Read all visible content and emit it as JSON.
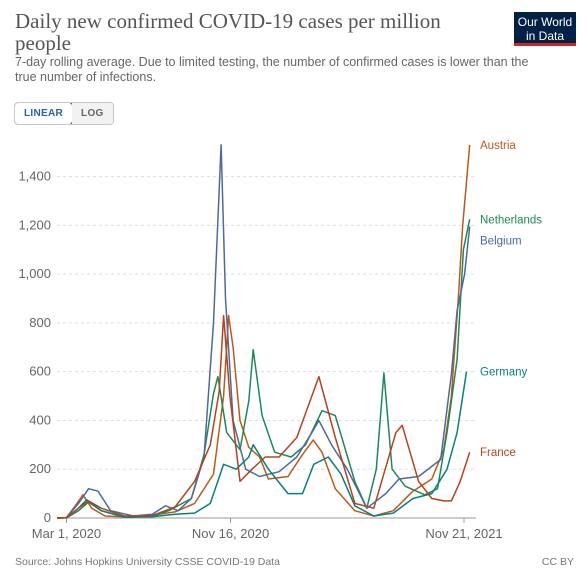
{
  "header": {
    "title": "Daily new confirmed COVID-19 cases per million people",
    "subtitle": "7-day rolling average. Due to limited testing, the number of confirmed cases is lower than the true number of infections.",
    "logo_line1": "Our World",
    "logo_line2": "in Data"
  },
  "controls": {
    "linear_label": "LINEAR",
    "log_label": "LOG"
  },
  "footer": {
    "source": "Source: Johns Hopkins University CSSE COVID-19 Data",
    "license": "CC BY"
  },
  "chart_data": {
    "type": "line",
    "x_unit": "date",
    "xlim": [
      "2020-02-15",
      "2021-12-10"
    ],
    "ylim": [
      0,
      1550
    ],
    "yticks": [
      0,
      200,
      400,
      600,
      800,
      1000,
      1200,
      1400
    ],
    "ytick_labels": [
      "0",
      "200",
      "400",
      "600",
      "800",
      "1,000",
      "1,200",
      "1,400"
    ],
    "xticks": [
      "2020-03-01",
      "2020-11-16",
      "2021-11-21"
    ],
    "xtick_labels": [
      "Mar 1, 2020",
      "Nov 16, 2020",
      "Nov 21, 2021"
    ],
    "grid": "horizontal-dashed",
    "legend": "right-end-labels",
    "series": [
      {
        "name": "Austria",
        "color": "#c05917",
        "points": [
          [
            "2020-02-15",
            0
          ],
          [
            "2020-03-01",
            2
          ],
          [
            "2020-03-15",
            50
          ],
          [
            "2020-03-27",
            95
          ],
          [
            "2020-04-10",
            40
          ],
          [
            "2020-05-01",
            8
          ],
          [
            "2020-06-15",
            3
          ],
          [
            "2020-07-15",
            12
          ],
          [
            "2020-08-20",
            25
          ],
          [
            "2020-09-20",
            60
          ],
          [
            "2020-10-20",
            180
          ],
          [
            "2020-11-05",
            500
          ],
          [
            "2020-11-13",
            830
          ],
          [
            "2020-11-20",
            700
          ],
          [
            "2020-12-01",
            400
          ],
          [
            "2020-12-15",
            290
          ],
          [
            "2021-01-01",
            250
          ],
          [
            "2021-01-15",
            160
          ],
          [
            "2021-02-15",
            170
          ],
          [
            "2021-03-10",
            260
          ],
          [
            "2021-03-27",
            320
          ],
          [
            "2021-04-10",
            270
          ],
          [
            "2021-05-01",
            120
          ],
          [
            "2021-06-01",
            30
          ],
          [
            "2021-07-01",
            8
          ],
          [
            "2021-08-01",
            30
          ],
          [
            "2021-09-01",
            110
          ],
          [
            "2021-10-01",
            160
          ],
          [
            "2021-10-20",
            280
          ],
          [
            "2021-11-01",
            500
          ],
          [
            "2021-11-12",
            900
          ],
          [
            "2021-11-19",
            1200
          ],
          [
            "2021-11-30",
            1530
          ]
        ]
      },
      {
        "name": "Netherlands",
        "color": "#1b8a5a",
        "points": [
          [
            "2020-02-15",
            0
          ],
          [
            "2020-03-01",
            1
          ],
          [
            "2020-03-20",
            30
          ],
          [
            "2020-04-05",
            65
          ],
          [
            "2020-04-25",
            30
          ],
          [
            "2020-06-01",
            3
          ],
          [
            "2020-07-15",
            6
          ],
          [
            "2020-08-10",
            30
          ],
          [
            "2020-09-15",
            80
          ],
          [
            "2020-10-05",
            260
          ],
          [
            "2020-10-20",
            510
          ],
          [
            "2020-10-27",
            580
          ],
          [
            "2020-11-10",
            350
          ],
          [
            "2020-12-01",
            280
          ],
          [
            "2020-12-15",
            480
          ],
          [
            "2020-12-22",
            690
          ],
          [
            "2021-01-05",
            420
          ],
          [
            "2021-01-25",
            270
          ],
          [
            "2021-02-20",
            250
          ],
          [
            "2021-03-15",
            300
          ],
          [
            "2021-04-10",
            440
          ],
          [
            "2021-05-01",
            420
          ],
          [
            "2021-06-01",
            150
          ],
          [
            "2021-06-20",
            40
          ],
          [
            "2021-07-05",
            200
          ],
          [
            "2021-07-17",
            595
          ],
          [
            "2021-07-30",
            200
          ],
          [
            "2021-08-20",
            130
          ],
          [
            "2021-09-20",
            95
          ],
          [
            "2021-10-10",
            120
          ],
          [
            "2021-10-25",
            350
          ],
          [
            "2021-11-10",
            650
          ],
          [
            "2021-11-20",
            1100
          ],
          [
            "2021-11-30",
            1225
          ]
        ]
      },
      {
        "name": "Belgium",
        "color": "#4c6a9c",
        "points": [
          [
            "2020-02-15",
            0
          ],
          [
            "2020-03-01",
            1
          ],
          [
            "2020-03-20",
            60
          ],
          [
            "2020-04-05",
            120
          ],
          [
            "2020-04-20",
            110
          ],
          [
            "2020-05-10",
            30
          ],
          [
            "2020-06-15",
            8
          ],
          [
            "2020-07-15",
            15
          ],
          [
            "2020-08-05",
            50
          ],
          [
            "2020-08-25",
            30
          ],
          [
            "2020-09-15",
            80
          ],
          [
            "2020-10-05",
            250
          ],
          [
            "2020-10-20",
            800
          ],
          [
            "2020-11-01",
            1530
          ],
          [
            "2020-11-08",
            900
          ],
          [
            "2020-11-20",
            400
          ],
          [
            "2020-12-10",
            200
          ],
          [
            "2021-01-01",
            170
          ],
          [
            "2021-02-01",
            190
          ],
          [
            "2021-03-01",
            250
          ],
          [
            "2021-03-25",
            350
          ],
          [
            "2021-04-05",
            400
          ],
          [
            "2021-04-25",
            300
          ],
          [
            "2021-05-20",
            200
          ],
          [
            "2021-06-20",
            40
          ],
          [
            "2021-07-20",
            100
          ],
          [
            "2021-08-10",
            160
          ],
          [
            "2021-09-10",
            170
          ],
          [
            "2021-10-15",
            240
          ],
          [
            "2021-11-01",
            590
          ],
          [
            "2021-11-10",
            850
          ],
          [
            "2021-11-22",
            1000
          ],
          [
            "2021-11-30",
            1195
          ]
        ]
      },
      {
        "name": "Germany",
        "color": "#00847e",
        "points": [
          [
            "2020-02-15",
            0
          ],
          [
            "2020-03-01",
            1
          ],
          [
            "2020-03-20",
            40
          ],
          [
            "2020-04-02",
            75
          ],
          [
            "2020-04-25",
            30
          ],
          [
            "2020-06-01",
            5
          ],
          [
            "2020-07-15",
            5
          ],
          [
            "2020-08-20",
            15
          ],
          [
            "2020-09-20",
            20
          ],
          [
            "2020-10-15",
            60
          ],
          [
            "2020-11-05",
            220
          ],
          [
            "2020-11-25",
            200
          ],
          [
            "2020-12-15",
            250
          ],
          [
            "2020-12-22",
            300
          ],
          [
            "2021-01-15",
            200
          ],
          [
            "2021-02-15",
            100
          ],
          [
            "2021-03-10",
            100
          ],
          [
            "2021-03-28",
            220
          ],
          [
            "2021-04-20",
            250
          ],
          [
            "2021-05-10",
            180
          ],
          [
            "2021-06-01",
            50
          ],
          [
            "2021-07-01",
            8
          ],
          [
            "2021-08-01",
            20
          ],
          [
            "2021-09-01",
            80
          ],
          [
            "2021-10-01",
            100
          ],
          [
            "2021-10-25",
            200
          ],
          [
            "2021-11-10",
            350
          ],
          [
            "2021-11-25",
            600
          ]
        ]
      },
      {
        "name": "France",
        "color": "#b5431b",
        "points": [
          [
            "2020-02-15",
            0
          ],
          [
            "2020-03-01",
            1
          ],
          [
            "2020-03-20",
            40
          ],
          [
            "2020-04-05",
            70
          ],
          [
            "2020-04-25",
            40
          ],
          [
            "2020-06-01",
            8
          ],
          [
            "2020-07-15",
            10
          ],
          [
            "2020-08-20",
            45
          ],
          [
            "2020-09-20",
            150
          ],
          [
            "2020-10-15",
            300
          ],
          [
            "2020-10-29",
            520
          ],
          [
            "2020-11-05",
            830
          ],
          [
            "2020-11-15",
            500
          ],
          [
            "2020-12-01",
            150
          ],
          [
            "2020-12-20",
            200
          ],
          [
            "2021-01-10",
            250
          ],
          [
            "2021-02-01",
            250
          ],
          [
            "2021-03-01",
            330
          ],
          [
            "2021-04-05",
            580
          ],
          [
            "2021-05-01",
            330
          ],
          [
            "2021-06-01",
            60
          ],
          [
            "2021-07-01",
            40
          ],
          [
            "2021-08-05",
            350
          ],
          [
            "2021-08-15",
            380
          ],
          [
            "2021-09-10",
            150
          ],
          [
            "2021-10-01",
            80
          ],
          [
            "2021-10-20",
            70
          ],
          [
            "2021-11-01",
            70
          ],
          [
            "2021-11-15",
            150
          ],
          [
            "2021-11-30",
            270
          ]
        ]
      }
    ]
  }
}
